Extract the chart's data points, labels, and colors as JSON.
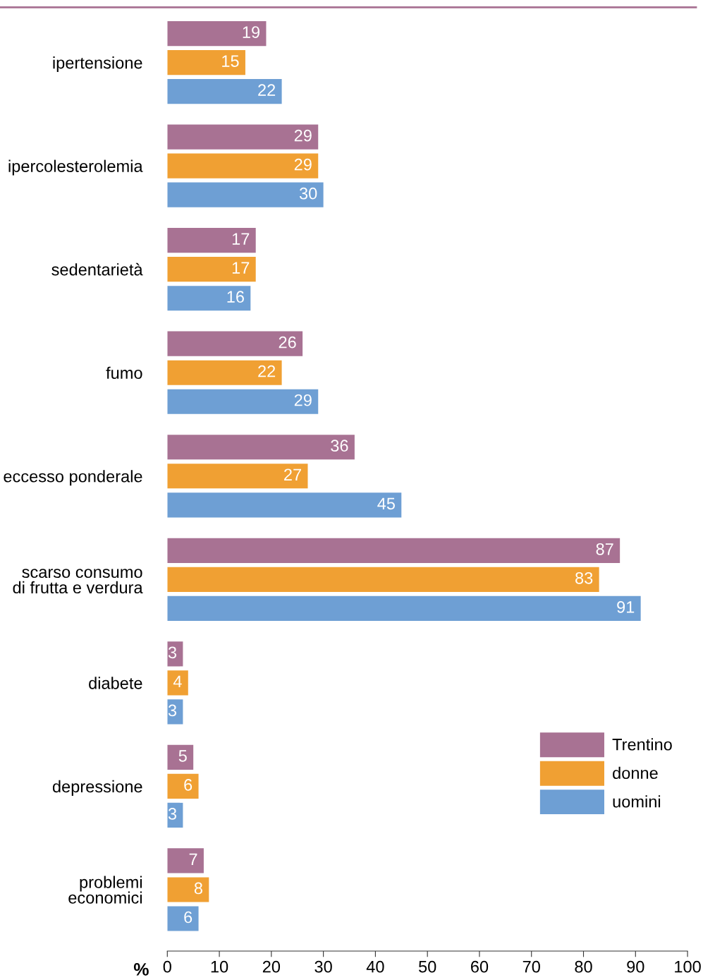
{
  "chart_data": {
    "type": "bar",
    "orientation": "horizontal",
    "xlabel": "%",
    "categories": [
      "ipertensione",
      "ipercolesterolemia",
      "sedentarietà",
      "fumo",
      "eccesso ponderale",
      "scarso consumo\ndi frutta e verdura",
      "diabete",
      "depressione",
      "problemi\neconomici"
    ],
    "series": [
      {
        "name": "Trentino",
        "color": "#a87293",
        "values": [
          19,
          29,
          17,
          26,
          36,
          87,
          3,
          5,
          7
        ]
      },
      {
        "name": "donne",
        "color": "#f0a033",
        "values": [
          15,
          29,
          17,
          22,
          27,
          83,
          4,
          6,
          8
        ]
      },
      {
        "name": "uomini",
        "color": "#6e9fd4",
        "values": [
          22,
          30,
          16,
          29,
          45,
          91,
          3,
          3,
          6
        ]
      }
    ],
    "xlim": [
      0,
      100
    ],
    "xticks": [
      0,
      10,
      20,
      30,
      40,
      50,
      60,
      70,
      80,
      90,
      100
    ],
    "data_labels": true,
    "legend": "bottom right",
    "grid": false
  }
}
